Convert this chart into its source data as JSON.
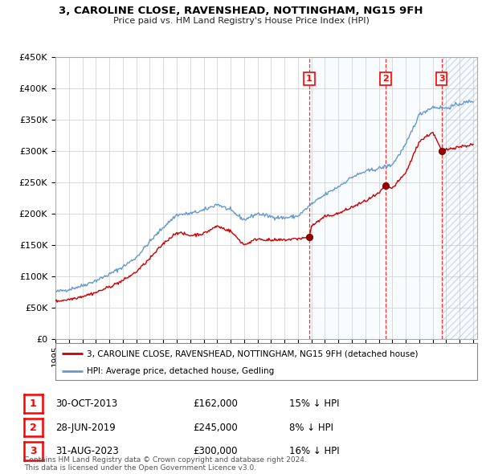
{
  "title": "3, CAROLINE CLOSE, RAVENSHEAD, NOTTINGHAM, NG15 9FH",
  "subtitle": "Price paid vs. HM Land Registry's House Price Index (HPI)",
  "ylim": [
    0,
    450000
  ],
  "yticks": [
    0,
    50000,
    100000,
    150000,
    200000,
    250000,
    300000,
    350000,
    400000,
    450000
  ],
  "xlim_start": 1995.0,
  "xlim_end": 2026.3,
  "sale_decimal": [
    2013.833,
    2019.5,
    2023.667
  ],
  "sale_prices": [
    162000,
    245000,
    300000
  ],
  "sale_labels": [
    "1",
    "2",
    "3"
  ],
  "sale_notes": [
    "30-OCT-2013",
    "28-JUN-2019",
    "31-AUG-2023"
  ],
  "sale_amounts": [
    "£162,000",
    "£245,000",
    "£300,000"
  ],
  "sale_pct": [
    "15% ↓ HPI",
    "8% ↓ HPI",
    "16% ↓ HPI"
  ],
  "legend_label_red": "3, CAROLINE CLOSE, RAVENSHEAD, NOTTINGHAM, NG15 9FH (detached house)",
  "legend_label_blue": "HPI: Average price, detached house, Gedling",
  "footer": "Contains HM Land Registry data © Crown copyright and database right 2024.\nThis data is licensed under the Open Government Licence v3.0.",
  "line_color_red": "#cc0000",
  "line_color_blue": "#6699cc",
  "shade_color": "#ddeeff",
  "grid_color": "#cccccc",
  "background_color": "#ffffff",
  "hpi_anchors_t": [
    1995.0,
    1996.0,
    1997.0,
    1998.0,
    1999.0,
    2000.0,
    2001.0,
    2002.0,
    2003.0,
    2004.0,
    2005.0,
    2006.0,
    2007.0,
    2008.0,
    2009.0,
    2010.0,
    2011.0,
    2012.0,
    2013.0,
    2014.0,
    2015.0,
    2016.0,
    2017.0,
    2018.0,
    2019.0,
    2020.0,
    2021.0,
    2022.0,
    2023.0,
    2024.0,
    2025.0,
    2026.0
  ],
  "hpi_anchors_v": [
    75000,
    79000,
    85000,
    93000,
    103000,
    115000,
    130000,
    155000,
    178000,
    198000,
    200000,
    205000,
    215000,
    205000,
    190000,
    200000,
    195000,
    193000,
    196000,
    215000,
    230000,
    243000,
    258000,
    267000,
    272000,
    278000,
    310000,
    358000,
    370000,
    368000,
    375000,
    380000
  ],
  "red_anchors_t": [
    1995.0,
    1996.0,
    1997.0,
    1998.0,
    1999.0,
    2000.0,
    2001.0,
    2002.0,
    2003.0,
    2004.0,
    2005.0,
    2006.0,
    2007.0,
    2008.0,
    2009.0,
    2010.0,
    2011.0,
    2012.0,
    2013.0,
    2013.833,
    2014.0,
    2015.0,
    2016.0,
    2017.0,
    2018.0,
    2019.0,
    2019.5,
    2020.0,
    2021.0,
    2022.0,
    2023.0,
    2023.667,
    2024.5,
    2026.0
  ],
  "red_anchors_v": [
    60000,
    63000,
    68000,
    74000,
    83000,
    93000,
    107000,
    128000,
    152000,
    170000,
    165000,
    168000,
    180000,
    172000,
    150000,
    160000,
    157000,
    158000,
    160000,
    162000,
    180000,
    195000,
    200000,
    210000,
    220000,
    232000,
    245000,
    240000,
    265000,
    315000,
    330000,
    300000,
    305000,
    310000
  ]
}
